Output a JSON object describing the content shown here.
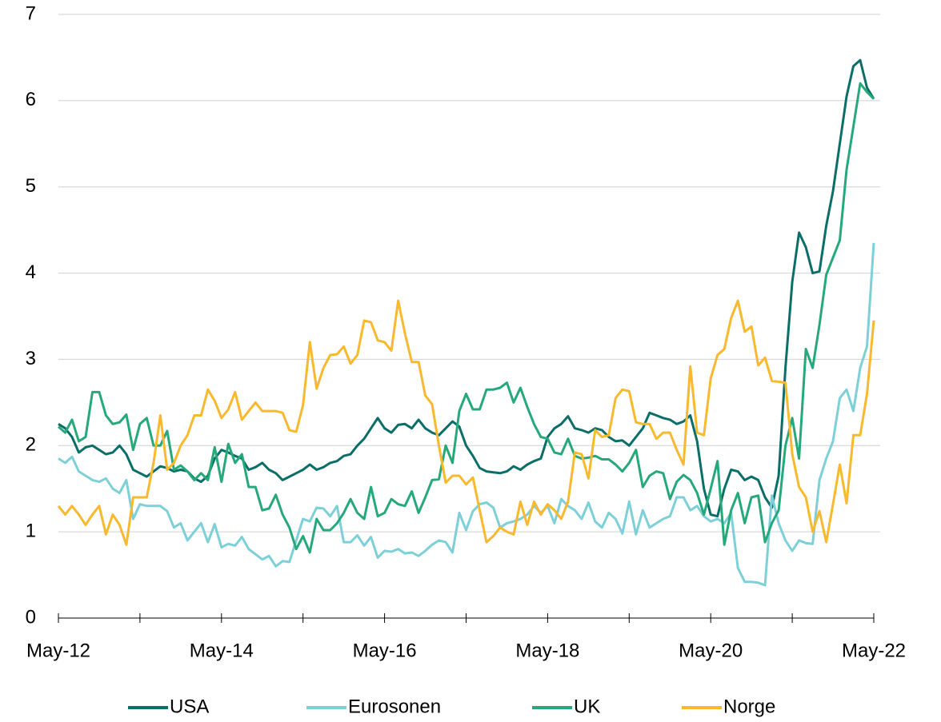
{
  "chart_data": {
    "type": "line",
    "categories": [
      "May-12",
      null,
      null,
      null,
      null,
      null,
      null,
      null,
      null,
      null,
      null,
      null,
      null,
      null,
      null,
      null,
      null,
      null,
      null,
      null,
      null,
      null,
      null,
      null,
      "May-14",
      null,
      null,
      null,
      null,
      null,
      null,
      null,
      null,
      null,
      null,
      null,
      null,
      null,
      null,
      null,
      null,
      null,
      null,
      null,
      null,
      null,
      null,
      null,
      "May-16",
      null,
      null,
      null,
      null,
      null,
      null,
      null,
      null,
      null,
      null,
      null,
      null,
      null,
      null,
      null,
      null,
      null,
      null,
      null,
      null,
      null,
      null,
      null,
      "May-18",
      null,
      null,
      null,
      null,
      null,
      null,
      null,
      null,
      null,
      null,
      null,
      null,
      null,
      null,
      null,
      null,
      null,
      null,
      null,
      null,
      null,
      null,
      null,
      "May-20",
      null,
      null,
      null,
      null,
      null,
      null,
      null,
      null,
      null,
      null,
      null,
      null,
      null,
      null,
      null,
      null,
      null,
      null,
      null,
      null,
      null,
      null,
      null,
      "May-22"
    ],
    "series": [
      {
        "name": "USA",
        "color": "#0b6e69",
        "values": [
          2.25,
          2.2,
          2.1,
          1.92,
          1.98,
          2.0,
          1.95,
          1.9,
          1.92,
          2.0,
          1.9,
          1.72,
          1.68,
          1.64,
          1.7,
          1.76,
          1.74,
          1.7,
          1.72,
          1.7,
          1.62,
          1.58,
          1.65,
          1.85,
          1.95,
          1.92,
          1.88,
          1.85,
          1.72,
          1.75,
          1.8,
          1.72,
          1.68,
          1.6,
          1.64,
          1.68,
          1.72,
          1.78,
          1.72,
          1.75,
          1.8,
          1.82,
          1.88,
          1.9,
          2.0,
          2.08,
          2.2,
          2.32,
          2.2,
          2.15,
          2.24,
          2.25,
          2.2,
          2.3,
          2.2,
          2.15,
          2.12,
          2.2,
          2.28,
          2.22,
          2.0,
          1.88,
          1.74,
          1.7,
          1.69,
          1.68,
          1.7,
          1.76,
          1.72,
          1.78,
          1.82,
          1.85,
          2.1,
          2.2,
          2.25,
          2.34,
          2.2,
          2.18,
          2.15,
          2.2,
          2.18,
          2.1,
          2.05,
          2.06,
          2.0,
          2.1,
          2.2,
          2.38,
          2.35,
          2.32,
          2.3,
          2.25,
          2.28,
          2.35,
          2.05,
          1.5,
          1.2,
          1.18,
          1.5,
          1.72,
          1.7,
          1.6,
          1.64,
          1.6,
          1.4,
          1.28,
          1.65,
          2.9,
          3.9,
          4.47,
          4.3,
          4.0,
          4.02,
          4.55,
          4.95,
          5.5,
          6.05,
          6.4,
          6.47,
          6.15,
          6.02
        ]
      },
      {
        "name": "Eurosonen",
        "color": "#7dd0d8",
        "values": [
          1.85,
          1.8,
          1.87,
          1.7,
          1.65,
          1.6,
          1.58,
          1.62,
          1.5,
          1.45,
          1.6,
          1.15,
          1.32,
          1.3,
          1.3,
          1.3,
          1.24,
          1.05,
          1.1,
          0.9,
          1.0,
          1.1,
          0.88,
          1.09,
          0.82,
          0.86,
          0.84,
          0.94,
          0.8,
          0.74,
          0.68,
          0.72,
          0.6,
          0.66,
          0.65,
          0.9,
          1.15,
          1.12,
          1.28,
          1.27,
          1.18,
          1.3,
          0.88,
          0.88,
          0.96,
          0.84,
          0.94,
          0.7,
          0.78,
          0.77,
          0.8,
          0.75,
          0.76,
          0.72,
          0.78,
          0.85,
          0.9,
          0.88,
          0.76,
          1.22,
          1.02,
          1.24,
          1.32,
          1.34,
          1.28,
          1.05,
          1.1,
          1.12,
          1.15,
          1.2,
          1.3,
          1.22,
          1.3,
          1.1,
          1.38,
          1.3,
          1.25,
          1.15,
          1.34,
          1.12,
          1.05,
          1.22,
          1.15,
          0.98,
          1.35,
          0.97,
          1.25,
          1.05,
          1.1,
          1.15,
          1.18,
          1.4,
          1.4,
          1.25,
          1.3,
          1.18,
          1.12,
          1.15,
          1.1,
          1.22,
          0.58,
          0.42,
          0.42,
          0.41,
          0.38,
          1.42,
          1.1,
          0.9,
          0.78,
          0.9,
          0.87,
          0.86,
          1.6,
          1.85,
          2.05,
          2.55,
          2.65,
          2.4,
          2.9,
          3.15,
          4.35
        ]
      },
      {
        "name": "UK",
        "color": "#26a97a",
        "values": [
          2.22,
          2.15,
          2.3,
          2.05,
          2.1,
          2.62,
          2.62,
          2.35,
          2.25,
          2.27,
          2.36,
          1.95,
          2.25,
          2.32,
          2.0,
          2.0,
          2.17,
          1.72,
          1.77,
          1.7,
          1.6,
          1.68,
          1.6,
          1.98,
          1.58,
          2.02,
          1.8,
          1.9,
          1.52,
          1.52,
          1.25,
          1.27,
          1.43,
          1.2,
          1.05,
          0.8,
          0.95,
          0.76,
          1.15,
          1.02,
          1.02,
          1.1,
          1.22,
          1.38,
          1.22,
          1.15,
          1.52,
          1.18,
          1.22,
          1.38,
          1.32,
          1.3,
          1.47,
          1.22,
          1.4,
          1.6,
          1.61,
          2.0,
          1.8,
          2.4,
          2.6,
          2.42,
          2.42,
          2.65,
          2.65,
          2.67,
          2.73,
          2.5,
          2.67,
          2.45,
          2.25,
          2.1,
          2.08,
          1.92,
          1.9,
          2.08,
          1.88,
          1.85,
          1.86,
          1.88,
          1.84,
          1.84,
          1.78,
          1.7,
          1.8,
          1.95,
          1.52,
          1.65,
          1.7,
          1.68,
          1.38,
          1.58,
          1.66,
          1.6,
          1.45,
          1.2,
          1.5,
          1.82,
          0.85,
          1.25,
          1.45,
          1.1,
          1.4,
          1.42,
          0.88,
          1.1,
          1.25,
          2.0,
          2.32,
          1.85,
          3.12,
          2.9,
          3.4,
          3.98,
          4.18,
          4.38,
          5.2,
          5.7,
          6.2,
          6.1,
          6.02
        ]
      },
      {
        "name": "Norge",
        "color": "#f8b92f",
        "values": [
          1.3,
          1.2,
          1.3,
          1.2,
          1.08,
          1.2,
          1.3,
          0.97,
          1.2,
          1.08,
          0.85,
          1.4,
          1.4,
          1.4,
          1.8,
          2.35,
          1.72,
          1.8,
          2.0,
          2.12,
          2.35,
          2.35,
          2.65,
          2.52,
          2.32,
          2.42,
          2.62,
          2.3,
          2.4,
          2.5,
          2.4,
          2.4,
          2.4,
          2.38,
          2.18,
          2.16,
          2.47,
          3.2,
          2.66,
          2.9,
          3.05,
          3.06,
          3.15,
          2.95,
          3.05,
          3.45,
          3.43,
          3.22,
          3.2,
          3.1,
          3.68,
          3.3,
          2.97,
          2.97,
          2.58,
          2.48,
          2.0,
          1.57,
          1.65,
          1.65,
          1.55,
          1.63,
          1.25,
          0.88,
          0.95,
          1.05,
          1.0,
          0.97,
          1.35,
          1.08,
          1.35,
          1.2,
          1.32,
          1.25,
          1.15,
          1.35,
          1.92,
          1.9,
          1.62,
          2.18,
          2.1,
          2.12,
          2.55,
          2.65,
          2.63,
          2.27,
          2.25,
          2.25,
          2.08,
          2.15,
          2.15,
          1.95,
          1.78,
          2.92,
          2.15,
          2.12,
          2.78,
          3.05,
          3.12,
          3.48,
          3.68,
          3.32,
          3.38,
          2.93,
          3.02,
          2.75,
          2.74,
          2.73,
          1.9,
          1.52,
          1.4,
          1.0,
          1.24,
          0.88,
          1.32,
          1.78,
          1.33,
          2.12,
          2.12,
          2.6,
          3.45
        ]
      }
    ],
    "ylim": [
      0,
      7
    ],
    "yticks": [
      0,
      1,
      2,
      3,
      4,
      5,
      6,
      7
    ],
    "grid": true,
    "legend": "bottom"
  }
}
